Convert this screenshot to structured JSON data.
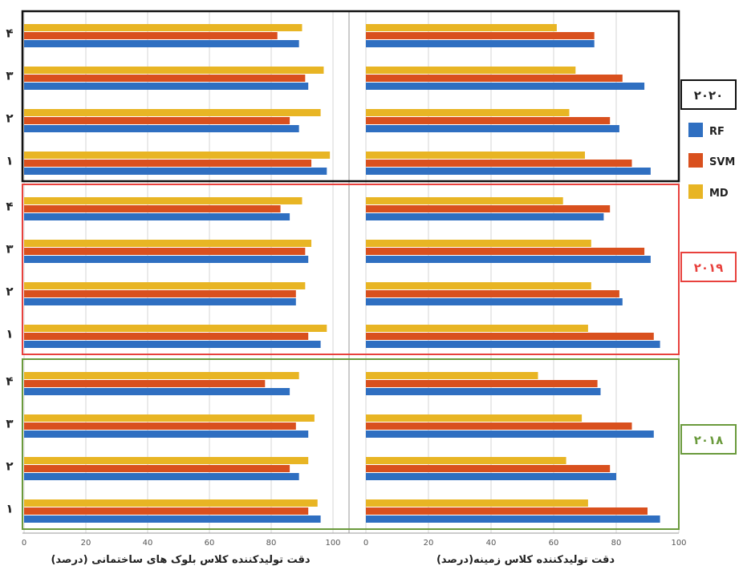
{
  "chart_data": {
    "type": "bar",
    "orientation": "horizontal",
    "xlim": [
      0,
      100
    ],
    "x_ticks": [
      "0",
      "20",
      "40",
      "60",
      "80",
      "100"
    ],
    "x_tick_labels_display": {
      "left_panel": [
        "0",
        "20",
        "40",
        "60",
        "80",
        "100"
      ],
      "right_panel": [
        "0",
        "20",
        "40",
        "60",
        "80",
        "100"
      ]
    },
    "category_labels": [
      "۱",
      "۲",
      "۳",
      "۴"
    ],
    "legend": [
      {
        "name": "RF",
        "color": "#2f6fc1"
      },
      {
        "name": "SVM",
        "color": "#d9501e"
      },
      {
        "name": "MD",
        "color": "#e8b524"
      }
    ],
    "legend_placement": "right",
    "panels": [
      {
        "side": "left",
        "xlabel": "دقت تولیدکننده کلاس بلوک های ساختمانی (درصد)"
      },
      {
        "side": "right",
        "xlabel": "دقت تولیدکننده کلاس زمینه(درصد)"
      }
    ],
    "groups": [
      {
        "year": "۲۰۲۰",
        "color": "#111111",
        "left": {
          "RF": [
            98,
            89,
            92,
            89
          ],
          "SVM": [
            93,
            86,
            91,
            82
          ],
          "MD": [
            99,
            96,
            97,
            90
          ]
        },
        "right": {
          "RF": [
            91,
            81,
            89,
            73
          ],
          "SVM": [
            85,
            78,
            82,
            73
          ],
          "MD": [
            70,
            65,
            67,
            61
          ]
        }
      },
      {
        "year": "۲۰۱۹",
        "color": "#e8413d",
        "left": {
          "RF": [
            96,
            88,
            92,
            86
          ],
          "SVM": [
            92,
            88,
            91,
            83
          ],
          "MD": [
            98,
            91,
            93,
            90
          ]
        },
        "right": {
          "RF": [
            94,
            82,
            91,
            76
          ],
          "SVM": [
            92,
            81,
            89,
            78
          ],
          "MD": [
            71,
            72,
            72,
            63
          ]
        }
      },
      {
        "year": "۲۰۱۸",
        "color": "#6a9a3c",
        "left": {
          "RF": [
            96,
            89,
            92,
            86
          ],
          "SVM": [
            92,
            86,
            88,
            78
          ],
          "MD": [
            95,
            92,
            94,
            89
          ]
        },
        "right": {
          "RF": [
            94,
            80,
            92,
            75
          ],
          "SVM": [
            90,
            78,
            85,
            74
          ],
          "MD": [
            71,
            64,
            69,
            55
          ]
        }
      }
    ]
  }
}
